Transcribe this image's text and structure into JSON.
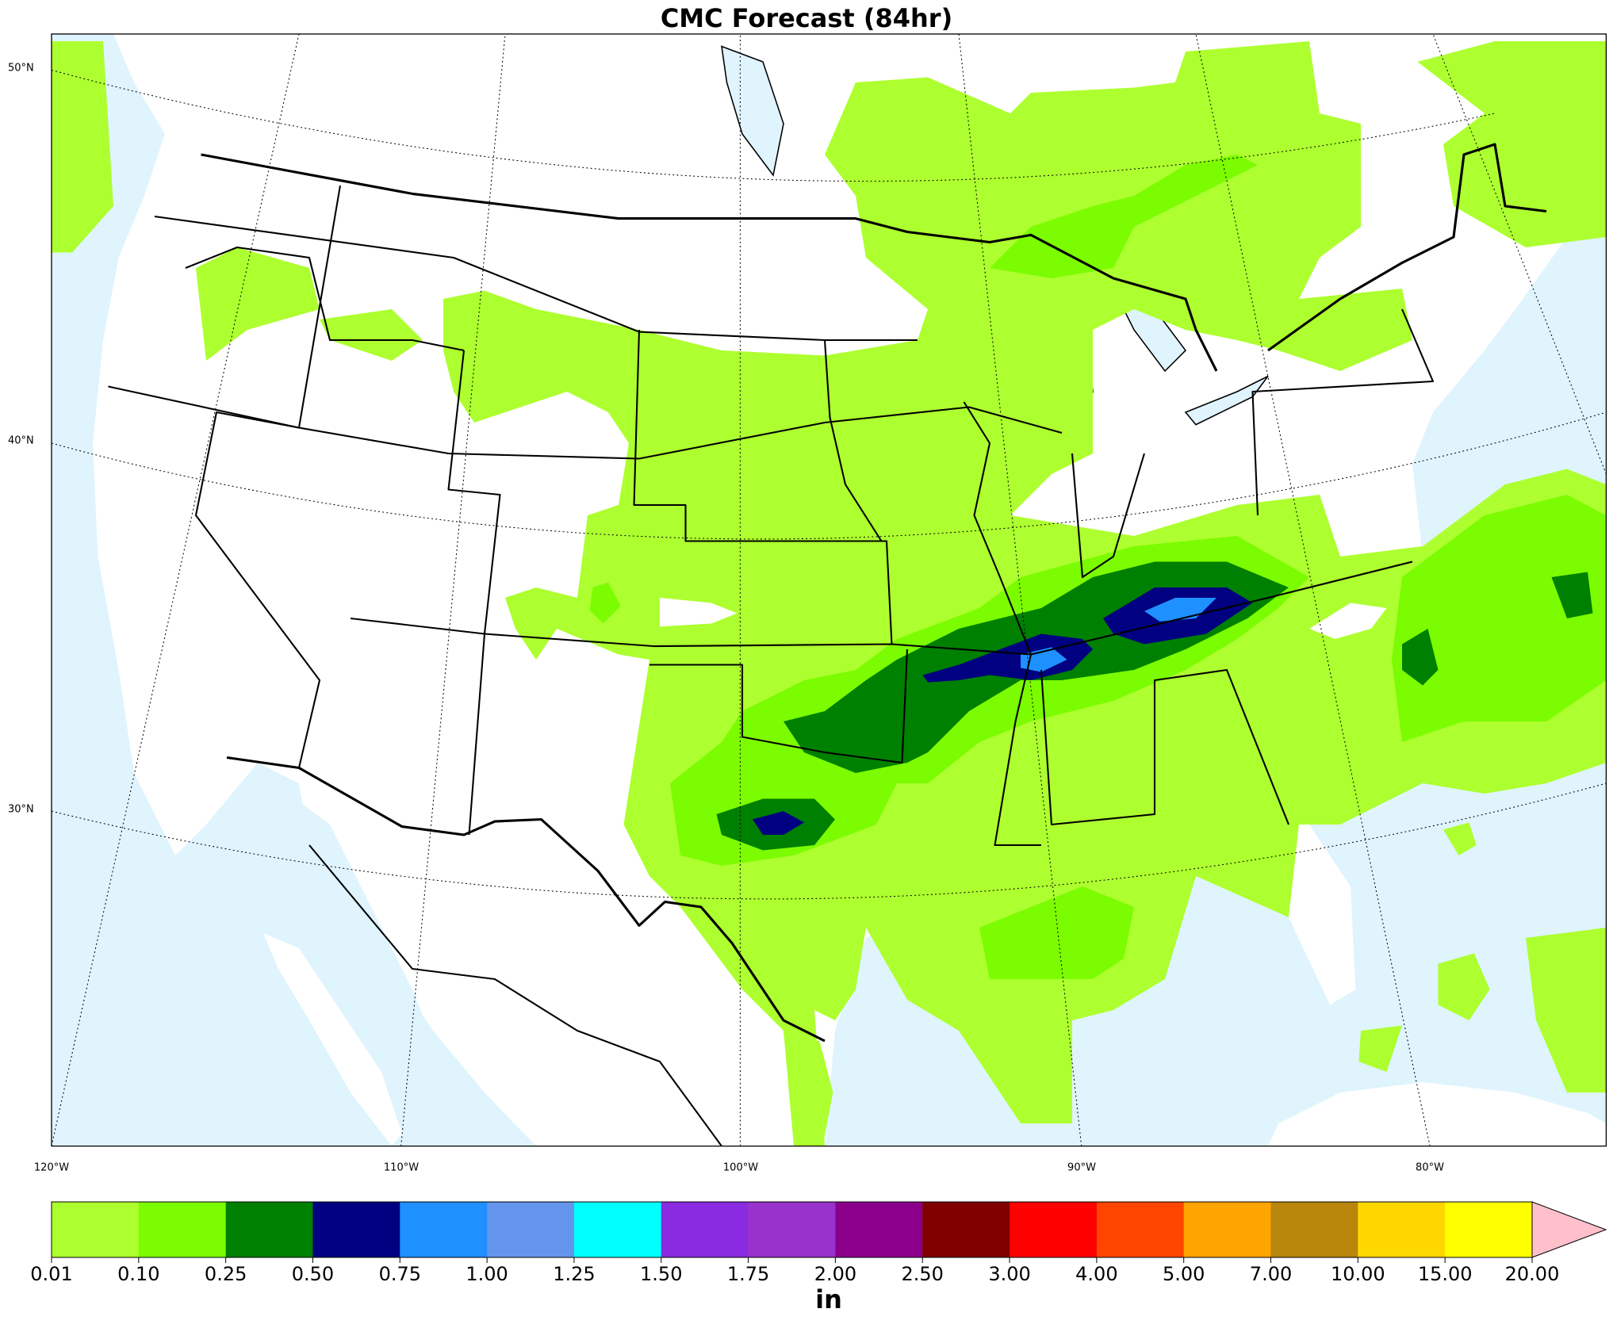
{
  "title": "CMC Forecast (84hr)",
  "map": {
    "latitude_labels": [
      "50°N",
      "40°N",
      "30°N"
    ],
    "longitude_labels": [
      "120°W",
      "110°W",
      "100°W",
      "90°W",
      "80°W"
    ]
  },
  "colorbar": {
    "label": "in",
    "ticks": [
      0.01,
      {
        "value": 0.1,
        "label": "0.10"
      },
      0.25,
      {
        "value": 0.5,
        "label": "0.50"
      },
      0.75,
      {
        "value": 1,
        "label": "1.00"
      },
      1.25,
      {
        "value": 1.5,
        "label": "1.50"
      },
      1.75,
      {
        "value": 2,
        "label": "2.00"
      },
      {
        "value": 2.5,
        "label": "2.50"
      },
      {
        "value": 3,
        "label": "3.00"
      },
      {
        "value": 4,
        "label": "4.00"
      },
      {
        "value": 5,
        "label": "5.00"
      },
      {
        "value": 7,
        "label": "7.00"
      },
      {
        "value": 10,
        "label": "10.00"
      },
      {
        "value": 15,
        "label": "15.00"
      },
      {
        "value": 20,
        "label": "20.00"
      }
    ],
    "colors": [
      "#adff2f",
      "#7cfc00",
      "#008000",
      "#000080",
      "#1e90ff",
      "#6495ed",
      "#00ffff",
      "#8a2be2",
      "#9932cc",
      "#8b008b",
      "#800000",
      "#ff0000",
      "#ff4500",
      "#ffa500",
      "#b8860b",
      "#ffd700",
      "#ffff00"
    ],
    "extend_color": "#ffc0cb"
  }
}
